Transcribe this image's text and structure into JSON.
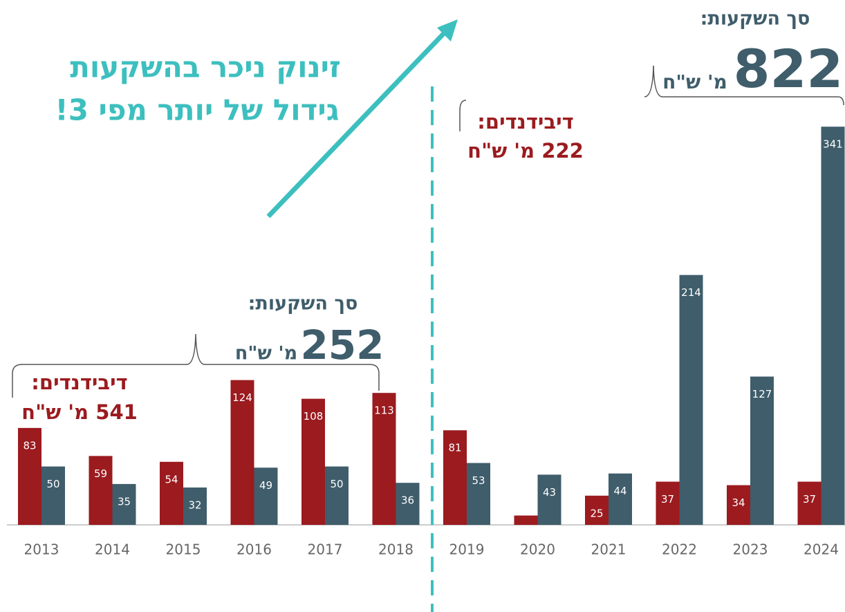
{
  "chart_data": {
    "type": "bar",
    "categories": [
      "2013",
      "2014",
      "2015",
      "2016",
      "2017",
      "2018",
      "2019",
      "2020",
      "2021",
      "2022",
      "2023",
      "2024"
    ],
    "series": [
      {
        "color": "#9b1b1f",
        "values": [
          83,
          59,
          54,
          124,
          108,
          113,
          81,
          8,
          25,
          37,
          34,
          37
        ]
      },
      {
        "color": "#3f5d6b",
        "values": [
          50,
          35,
          32,
          49,
          50,
          36,
          53,
          43,
          44,
          214,
          127,
          341
        ]
      }
    ],
    "ylim": [
      0,
      350
    ],
    "annotations": {
      "headline": [
        "זינוק ניכר בהשקעות",
        "גידול של יותר מפי 3!"
      ],
      "right_invest_label": "סך השקעות:",
      "right_invest_total": "822",
      "right_invest_unit": "מ' ש\"ח",
      "right_div_label": "דיבידנדים:",
      "right_div_total": "222 מ' ש\"ח",
      "left_invest_label": "סך השקעות:",
      "left_invest_total": "252",
      "left_invest_unit": "מ' ש\"ח",
      "left_div_label": "דיבידנדים:",
      "left_div_total": "541 מ' ש\"ח"
    }
  }
}
